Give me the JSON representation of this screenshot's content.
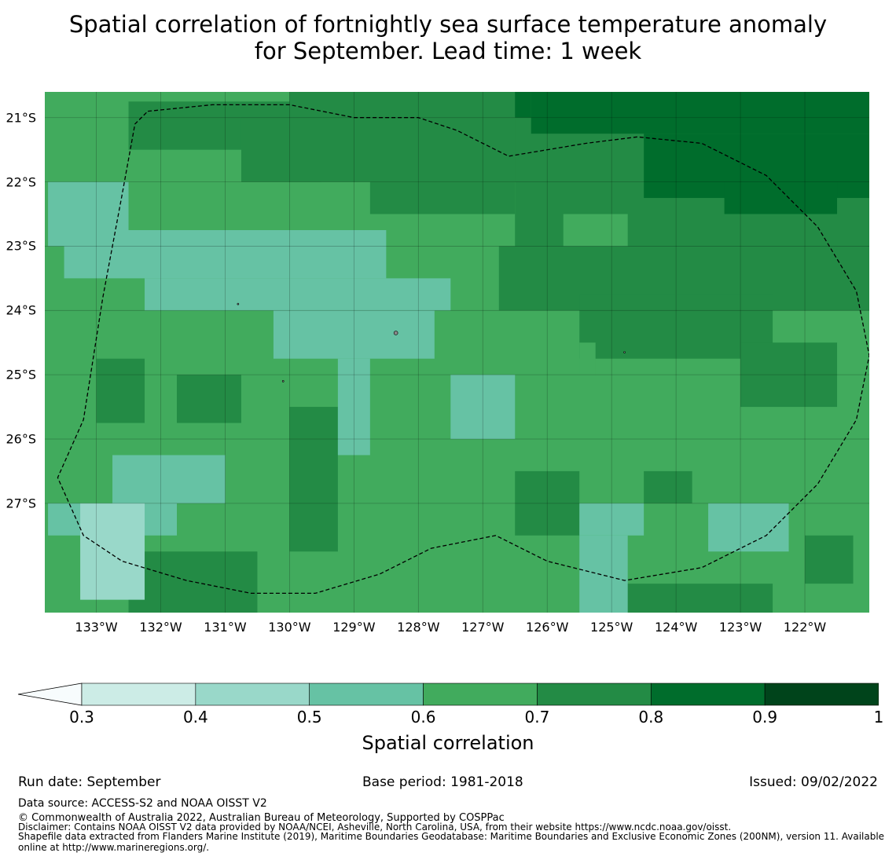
{
  "title_line1": "Spatial correlation of fortnightly sea surface temperature anomaly",
  "title_line2": "for September. Lead time: 1 week",
  "map": {
    "lat_ticks": [
      "21°S",
      "22°S",
      "23°S",
      "24°S",
      "25°S",
      "26°S",
      "27°S"
    ],
    "lon_ticks": [
      "133°W",
      "132°W",
      "131°W",
      "130°W",
      "129°W",
      "128°W",
      "127°W",
      "126°W",
      "125°W",
      "124°W",
      "123°W",
      "122°W"
    ],
    "lat_values": [
      -21,
      -22,
      -23,
      -24,
      -25,
      -26,
      -27
    ],
    "lon_values": [
      -133,
      -132,
      -131,
      -130,
      -129,
      -128,
      -127,
      -126,
      -125,
      -124,
      -123,
      -122
    ],
    "extent": {
      "lon_min": -133.8,
      "lon_max": -121.0,
      "lat_max": -20.6,
      "lat_min": -28.7
    },
    "grid_deg": 0.25,
    "base_class": 3,
    "regions": [
      {
        "cls": 4,
        "lon": [
          -132.6,
          -129.0
        ],
        "lat": [
          -20.8,
          -21.6
        ]
      },
      {
        "cls": 4,
        "lon": [
          -130.0,
          -126.2
        ],
        "lat": [
          -20.6,
          -21.9
        ]
      },
      {
        "cls": 4,
        "lon": [
          -126.6,
          -121.0
        ],
        "lat": [
          -20.6,
          -23.2
        ]
      },
      {
        "cls": 5,
        "lon": [
          -126.2,
          -121.0
        ],
        "lat": [
          -20.6,
          -21.3
        ]
      },
      {
        "cls": 5,
        "lon": [
          -124.4,
          -121.0
        ],
        "lat": [
          -21.2,
          -22.3
        ]
      },
      {
        "cls": 5,
        "lon": [
          -123.2,
          -121.6
        ],
        "lat": [
          -22.1,
          -22.6
        ]
      },
      {
        "cls": 4,
        "lon": [
          -126.8,
          -121.0
        ],
        "lat": [
          -23.0,
          -24.0
        ]
      },
      {
        "cls": 4,
        "lon": [
          -125.6,
          -122.4
        ],
        "lat": [
          -23.8,
          -24.8
        ]
      },
      {
        "cls": 4,
        "lon": [
          -123.0,
          -121.4
        ],
        "lat": [
          -24.6,
          -25.6
        ]
      },
      {
        "cls": 4,
        "lon": [
          -130.8,
          -129.6
        ],
        "lat": [
          -21.0,
          -21.9
        ]
      },
      {
        "cls": 4,
        "lon": [
          -128.8,
          -126.4
        ],
        "lat": [
          -22.0,
          -22.5
        ]
      },
      {
        "cls": 4,
        "lon": [
          -133.0,
          -132.2
        ],
        "lat": [
          -24.8,
          -25.8
        ]
      },
      {
        "cls": 4,
        "lon": [
          -131.8,
          -130.8
        ],
        "lat": [
          -25.0,
          -25.8
        ]
      },
      {
        "cls": 4,
        "lon": [
          -130.0,
          -129.2
        ],
        "lat": [
          -25.6,
          -27.8
        ]
      },
      {
        "cls": 4,
        "lon": [
          -132.6,
          -130.4
        ],
        "lat": [
          -27.8,
          -28.7
        ]
      },
      {
        "cls": 4,
        "lon": [
          -126.6,
          -125.6
        ],
        "lat": [
          -26.5,
          -27.6
        ]
      },
      {
        "cls": 4,
        "lon": [
          -124.6,
          -123.8
        ],
        "lat": [
          -26.4,
          -27.0
        ]
      },
      {
        "cls": 4,
        "lon": [
          -125.2,
          -122.6
        ],
        "lat": [
          -28.2,
          -28.7
        ]
      },
      {
        "cls": 4,
        "lon": [
          -122.0,
          -121.2
        ],
        "lat": [
          -27.6,
          -28.2
        ]
      },
      {
        "cls": 2,
        "lon": [
          -133.8,
          -132.4
        ],
        "lat": [
          -22.0,
          -23.0
        ]
      },
      {
        "cls": 2,
        "lon": [
          -133.6,
          -128.4
        ],
        "lat": [
          -22.8,
          -23.6
        ]
      },
      {
        "cls": 2,
        "lon": [
          -132.2,
          -127.4
        ],
        "lat": [
          -23.6,
          -24.0
        ]
      },
      {
        "cls": 2,
        "lon": [
          -130.2,
          -127.8
        ],
        "lat": [
          -24.0,
          -24.8
        ]
      },
      {
        "cls": 2,
        "lon": [
          -129.2,
          -128.8
        ],
        "lat": [
          -24.8,
          -26.2
        ]
      },
      {
        "cls": 2,
        "lon": [
          -127.6,
          -126.4
        ],
        "lat": [
          -25.0,
          -26.0
        ]
      },
      {
        "cls": 2,
        "lon": [
          -132.8,
          -131.0
        ],
        "lat": [
          -26.2,
          -27.0
        ]
      },
      {
        "cls": 2,
        "lon": [
          -133.8,
          -131.8
        ],
        "lat": [
          -27.0,
          -27.5
        ]
      },
      {
        "cls": 2,
        "lon": [
          -125.4,
          -124.6
        ],
        "lat": [
          -27.0,
          -27.5
        ]
      },
      {
        "cls": 2,
        "lon": [
          -123.4,
          -122.2
        ],
        "lat": [
          -27.0,
          -27.7
        ]
      },
      {
        "cls": 2,
        "lon": [
          -125.6,
          -124.8
        ],
        "lat": [
          -27.5,
          -28.7
        ]
      },
      {
        "cls": 1,
        "lon": [
          -133.2,
          -132.2
        ],
        "lat": [
          -27.0,
          -28.5
        ]
      },
      {
        "cls": 3,
        "lon": [
          -125.8,
          -124.8
        ],
        "lat": [
          -22.4,
          -23.0
        ]
      },
      {
        "cls": 3,
        "lon": [
          -125.6,
          -125.3
        ],
        "lat": [
          -24.5,
          -25.0
        ]
      },
      {
        "cls": 5,
        "lon": [
          -126.6,
          -126.2
        ],
        "lat": [
          -20.6,
          -20.9
        ]
      }
    ],
    "boundary": [
      [
        -132.2,
        -20.9
      ],
      [
        -131.2,
        -20.8
      ],
      [
        -130.0,
        -20.8
      ],
      [
        -129.0,
        -21.0
      ],
      [
        -128.0,
        -21.0
      ],
      [
        -127.4,
        -21.2
      ],
      [
        -126.6,
        -21.6
      ],
      [
        -125.4,
        -21.4
      ],
      [
        -124.6,
        -21.3
      ],
      [
        -123.6,
        -21.4
      ],
      [
        -122.6,
        -21.9
      ],
      [
        -121.8,
        -22.7
      ],
      [
        -121.2,
        -23.7
      ],
      [
        -121.0,
        -24.7
      ],
      [
        -121.2,
        -25.7
      ],
      [
        -121.8,
        -26.7
      ],
      [
        -122.6,
        -27.5
      ],
      [
        -123.6,
        -28.0
      ],
      [
        -124.8,
        -28.2
      ],
      [
        -126.0,
        -27.9
      ],
      [
        -126.8,
        -27.5
      ],
      [
        -127.8,
        -27.7
      ],
      [
        -128.6,
        -28.1
      ],
      [
        -129.6,
        -28.4
      ],
      [
        -130.6,
        -28.4
      ],
      [
        -131.6,
        -28.2
      ],
      [
        -132.6,
        -27.9
      ],
      [
        -133.2,
        -27.5
      ],
      [
        -133.6,
        -26.6
      ],
      [
        -133.2,
        -25.7
      ],
      [
        -132.9,
        -23.8
      ],
      [
        -132.6,
        -22.2
      ],
      [
        -132.4,
        -21.1
      ],
      [
        -132.2,
        -20.9
      ]
    ]
  },
  "colorbar": {
    "colors": [
      "#ccece6",
      "#99d8c9",
      "#66c2a4",
      "#41ab5d",
      "#238b45",
      "#006d2c",
      "#00441b"
    ],
    "extend_color": "#f7fcfd",
    "ticks": [
      "0.3",
      "0.4",
      "0.5",
      "0.6",
      "0.7",
      "0.8",
      "0.9",
      "1"
    ],
    "label": "Spatial correlation"
  },
  "footer": {
    "run_date": "Run date: September",
    "base_period": "Base period: 1981-2018",
    "issued": "Issued: 09/02/2022",
    "data_source": "Data source: ACCESS-S2 and NOAA OISST V2",
    "copyright": "© Commonwealth of Australia 2022, Australian Bureau of Meteorology, Supported by COSPPac",
    "disclaimer": "Disclaimer: Contains NOAA OISST V2 data provided by NOAA/NCEI, Asheville, North Carolina, USA, from their website https://www.ncdc.noaa.gov/oisst.",
    "shapefile_line1": "Shapefile data extracted from Flanders Marine Institute (2019), Maritime Boundaries Geodatabase: Maritime Boundaries and Exclusive Economic Zones (200NM), version 11. Available",
    "shapefile_line2": "online at http://www.marineregions.org/."
  }
}
